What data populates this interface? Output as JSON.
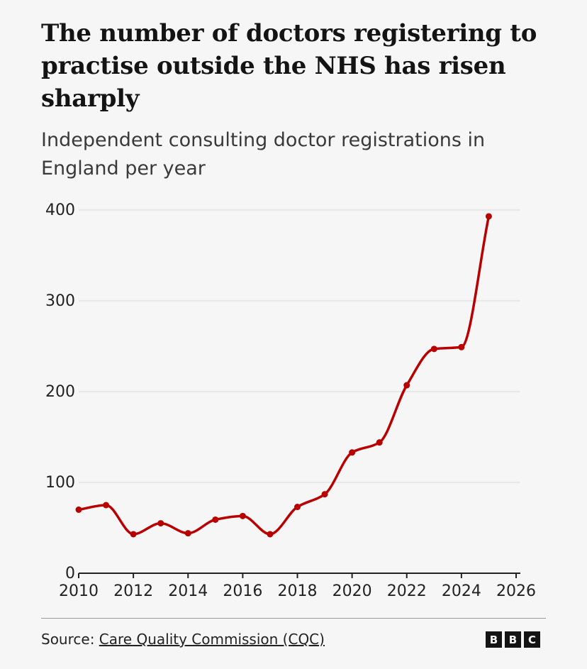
{
  "title": "The number of doctors registering to practise outside the NHS has risen sharply",
  "subtitle": "Independent consulting doctor registrations in England per year",
  "source": {
    "prefix": "Source:",
    "link_text": "Care Quality Commission (CQC)"
  },
  "logo": {
    "letters": [
      "B",
      "B",
      "C"
    ]
  },
  "colors": {
    "line": "#b80000",
    "grid": "#e3e3e3",
    "axis": "#222222",
    "background": "#f6f6f6"
  },
  "chart_data": {
    "type": "line",
    "title": "The number of doctors registering to practise outside the NHS has risen sharply",
    "subtitle": "Independent consulting doctor registrations in England per year",
    "xlabel": "",
    "ylabel": "",
    "xlim": [
      2010,
      2026
    ],
    "ylim": [
      0,
      400
    ],
    "xticks": [
      2010,
      2012,
      2014,
      2016,
      2018,
      2020,
      2022,
      2024,
      2026
    ],
    "yticks": [
      0,
      100,
      200,
      300,
      400
    ],
    "grid": true,
    "series": [
      {
        "name": "Independent consulting doctor registrations",
        "x": [
          2010,
          2011,
          2012,
          2013,
          2014,
          2015,
          2016,
          2017,
          2018,
          2019,
          2020,
          2021,
          2022,
          2023,
          2024,
          2025
        ],
        "values": [
          70,
          75,
          43,
          55,
          44,
          59,
          63,
          43,
          73,
          87,
          133,
          144,
          207,
          247,
          249,
          393
        ]
      }
    ]
  }
}
